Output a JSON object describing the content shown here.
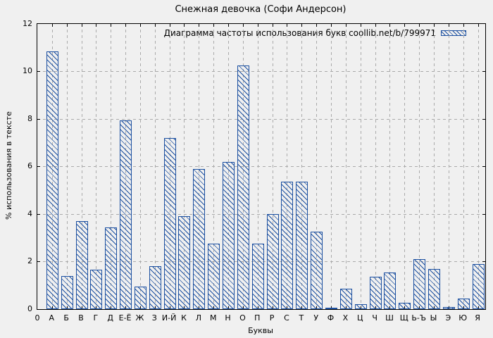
{
  "title": "Снежная девочка (Софи Андерсон)",
  "legend": {
    "label": "Диаграмма частоты использования букв coollib.net/b/799971",
    "swatch": "hatched-blue-box"
  },
  "axes": {
    "ylabel": "% использования в тексте",
    "xlabel": "Буквы",
    "origin_label": "0",
    "yticks": [
      0,
      2,
      4,
      6,
      8,
      10,
      12
    ]
  },
  "colors": {
    "bar": "#1b4fa0",
    "grid": "#aaaaaa",
    "background": "#f0f0f0",
    "axis": "#000000"
  },
  "chart_data": {
    "type": "bar",
    "title": "Снежная девочка (Софи Андерсон)",
    "xlabel": "Буквы",
    "ylabel": "% использования в тексте",
    "ylim": [
      0,
      12
    ],
    "grid": true,
    "legend": "Диаграмма частоты использования букв coollib.net/b/799971",
    "legend_position": "top-right-inside",
    "bar_style": "blue outline with diagonal hatch, transparent fill",
    "categories": [
      "А",
      "Б",
      "В",
      "Г",
      "Д",
      "Е-Ё",
      "Ж",
      "З",
      "И-Й",
      "К",
      "Л",
      "М",
      "Н",
      "О",
      "П",
      "Р",
      "С",
      "Т",
      "У",
      "Ф",
      "Х",
      "Ц",
      "Ч",
      "Ш",
      "Щ",
      "Ь-Ъ",
      "Ы",
      "Э",
      "Ю",
      "Я"
    ],
    "values": [
      10.85,
      1.4,
      3.7,
      1.65,
      3.45,
      7.95,
      0.95,
      1.8,
      7.2,
      3.9,
      5.9,
      2.75,
      6.2,
      10.25,
      2.75,
      4.0,
      5.35,
      5.35,
      3.25,
      0.07,
      0.85,
      0.22,
      1.35,
      1.55,
      0.28,
      2.1,
      1.7,
      0.1,
      0.45,
      1.9
    ]
  }
}
